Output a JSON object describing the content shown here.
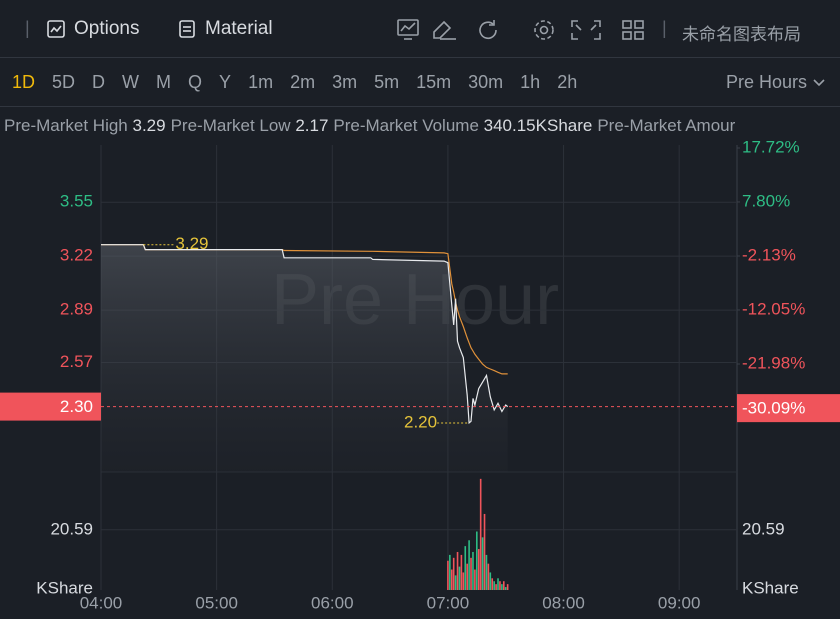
{
  "toolbar": {
    "options": "Options",
    "material": "Material",
    "layout_name": "未命名图表布局"
  },
  "timeframes": [
    "1D",
    "5D",
    "D",
    "W",
    "M",
    "Q",
    "Y",
    "1m",
    "2m",
    "3m",
    "5m",
    "15m",
    "30m",
    "1h",
    "2h"
  ],
  "active_timeframe": 0,
  "session": "Pre Hours",
  "stats": [
    {
      "label": "Pre-Market High",
      "value": "3.29"
    },
    {
      "label": "Pre-Market Low",
      "value": "2.17"
    },
    {
      "label": "Pre-Market Volume",
      "value": "340.15KShare"
    },
    {
      "label": "Pre-Market Amour"
    }
  ],
  "chart_data": [
    {
      "type": "line",
      "watermark": "Pre Hour",
      "x": [
        240,
        262,
        263,
        334,
        335,
        380,
        381,
        418,
        420,
        422,
        423,
        424,
        425,
        426,
        428,
        430,
        431,
        432,
        433,
        434,
        436,
        438,
        440,
        442,
        444,
        446,
        448,
        450,
        451
      ],
      "series": [
        {
          "color": "#e8eaed",
          "values": [
            3.29,
            3.29,
            3.26,
            3.26,
            3.21,
            3.21,
            3.2,
            3.19,
            3.18,
            2.92,
            2.8,
            2.96,
            2.7,
            2.66,
            2.6,
            2.37,
            2.2,
            2.21,
            2.35,
            2.31,
            2.41,
            2.45,
            2.49,
            2.36,
            2.28,
            2.32,
            2.27,
            2.31,
            2.3
          ]
        },
        {
          "color": "#e0913a",
          "values": [
            3.29,
            3.29,
            3.26,
            3.26,
            3.255,
            3.25,
            3.25,
            3.24,
            3.235,
            3.05,
            3.0,
            2.94,
            2.89,
            2.85,
            2.79,
            2.72,
            2.69,
            2.66,
            2.64,
            2.62,
            2.59,
            2.56,
            2.54,
            2.53,
            2.52,
            2.51,
            2.5,
            2.5,
            2.5
          ]
        }
      ],
      "xlim": [
        240,
        570
      ],
      "xticks": [
        {
          "value": 240,
          "label": "04:00"
        },
        {
          "value": 300,
          "label": "05:00"
        },
        {
          "value": 360,
          "label": "06:00"
        },
        {
          "value": 420,
          "label": "07:00"
        },
        {
          "value": 480,
          "label": "08:00"
        },
        {
          "value": 540,
          "label": "09:00"
        }
      ],
      "ylim": [
        1.9,
        3.9
      ],
      "yticks": [
        3.55,
        3.22,
        2.89,
        2.57
      ],
      "y2lim": [
        -41.83,
        18.27
      ],
      "y2ticks": [
        {
          "value": 17.72,
          "label": "17.72%"
        },
        {
          "value": 7.8,
          "label": "7.80%"
        },
        {
          "value": -2.13,
          "label": "-2.13%"
        },
        {
          "value": -12.05,
          "label": "-12.05%"
        },
        {
          "value": -21.98,
          "label": "-21.98%"
        }
      ],
      "grid": true,
      "high_marker": {
        "x": 262,
        "value": 3.29
      },
      "low_marker": {
        "x": 431,
        "value": {
          "value": 2.2,
          "label": "2.20"
        }
      },
      "current": {
        "value": {
          "value": 2.3,
          "label": "2.30"
        },
        "pct": {
          "value": -30.09,
          "label": "-30.09%"
        }
      }
    },
    {
      "type": "bar",
      "x": [
        420,
        421,
        422,
        423,
        424,
        425,
        426,
        427,
        428,
        429,
        430,
        431,
        432,
        433,
        434,
        435,
        436,
        437,
        438,
        439,
        440,
        441,
        442,
        443,
        444,
        445,
        446,
        447,
        448,
        449,
        450,
        451
      ],
      "values": [
        10,
        12,
        7,
        11,
        5,
        13,
        8,
        12,
        6,
        15,
        9,
        17,
        11,
        13,
        7,
        20,
        14,
        38,
        18,
        26,
        12,
        9,
        6,
        4,
        3,
        2,
        4,
        3,
        2,
        3,
        1,
        2
      ],
      "colors": [
        "#f0545b",
        "#2ebd85",
        "#f0545b",
        "#f0545b",
        "#2ebd85",
        "#f0545b",
        "#2ebd85",
        "#f0545b",
        "#f0545b",
        "#2ebd85",
        "#f0545b",
        "#2ebd85",
        "#f0545b",
        "#2ebd85",
        "#f0545b",
        "#2ebd85",
        "#f0545b",
        "#f0545b",
        "#2ebd85",
        "#f0545b",
        "#2ebd85",
        "#f0545b",
        "#2ebd85",
        "#f0545b",
        "#2ebd85",
        "#f0545b",
        "#2ebd85",
        "#f0545b",
        "#2ebd85",
        "#f0545b",
        "#2ebd85",
        "#f0545b"
      ],
      "ylim": [
        0,
        40
      ],
      "yticks": [
        20.59
      ],
      "unit_label": "KShare"
    }
  ]
}
